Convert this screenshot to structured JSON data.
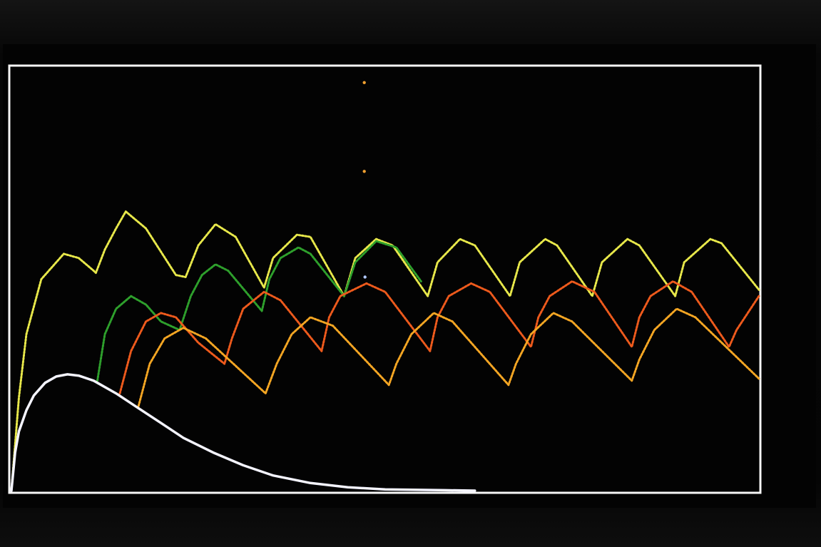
{
  "chart_data": {
    "type": "line",
    "title": "",
    "xlabel": "",
    "ylabel": "",
    "xlim": [
      0,
      100
    ],
    "ylim": [
      0,
      100
    ],
    "grid": false,
    "legend": "none",
    "series": [
      {
        "color": "#e8e84a",
        "style": "dotted",
        "points": [
          {
            "x": 0,
            "y": 0
          },
          {
            "x": 1,
            "y": 22
          },
          {
            "x": 2,
            "y": 37
          },
          {
            "x": 4,
            "y": 50
          },
          {
            "x": 7,
            "y": 56
          },
          {
            "x": 9,
            "y": 55
          },
          {
            "x": 11,
            "y": 52
          },
          {
            "x": 11.3,
            "y": 51.5
          },
          {
            "x": 12.5,
            "y": 57
          },
          {
            "x": 14,
            "y": 62
          },
          {
            "x": 15.3,
            "y": 66
          },
          {
            "x": 18,
            "y": 62
          },
          {
            "x": 22,
            "y": 51
          },
          {
            "x": 23.3,
            "y": 50.5
          },
          {
            "x": 25,
            "y": 58
          },
          {
            "x": 27.3,
            "y": 63
          },
          {
            "x": 30,
            "y": 60
          },
          {
            "x": 33.8,
            "y": 48
          },
          {
            "x": 35,
            "y": 55
          },
          {
            "x": 38.2,
            "y": 60.5
          },
          {
            "x": 40,
            "y": 60
          },
          {
            "x": 44.5,
            "y": 46
          },
          {
            "x": 46,
            "y": 55
          },
          {
            "x": 48.8,
            "y": 59.5
          },
          {
            "x": 51,
            "y": 58
          },
          {
            "x": 55.7,
            "y": 46
          },
          {
            "x": 57,
            "y": 54
          },
          {
            "x": 60,
            "y": 59.5
          },
          {
            "x": 62,
            "y": 58
          },
          {
            "x": 66.7,
            "y": 46
          },
          {
            "x": 68,
            "y": 54
          },
          {
            "x": 71.4,
            "y": 59.5
          },
          {
            "x": 73,
            "y": 58
          },
          {
            "x": 77.7,
            "y": 46
          },
          {
            "x": 79,
            "y": 54
          },
          {
            "x": 82.4,
            "y": 59.5
          },
          {
            "x": 84,
            "y": 58
          },
          {
            "x": 88.8,
            "y": 46
          },
          {
            "x": 90,
            "y": 54
          },
          {
            "x": 93.5,
            "y": 59.5
          },
          {
            "x": 95,
            "y": 58.5
          },
          {
            "x": 100,
            "y": 47.5
          }
        ]
      },
      {
        "color": "#2ea02c",
        "style": "dotted",
        "points": [
          {
            "x": 11.5,
            "y": 26
          },
          {
            "x": 12.5,
            "y": 37
          },
          {
            "x": 14,
            "y": 43
          },
          {
            "x": 16,
            "y": 46
          },
          {
            "x": 18,
            "y": 44
          },
          {
            "x": 20,
            "y": 40
          },
          {
            "x": 22.5,
            "y": 38
          },
          {
            "x": 24,
            "y": 46
          },
          {
            "x": 25.5,
            "y": 51
          },
          {
            "x": 27.3,
            "y": 53.5
          },
          {
            "x": 29,
            "y": 52
          },
          {
            "x": 33.5,
            "y": 42.5
          },
          {
            "x": 34.5,
            "y": 50
          },
          {
            "x": 36,
            "y": 55
          },
          {
            "x": 38.4,
            "y": 57.5
          },
          {
            "x": 40,
            "y": 56
          },
          {
            "x": 44.5,
            "y": 46
          },
          {
            "x": 46,
            "y": 54
          },
          {
            "x": 48.8,
            "y": 59
          },
          {
            "x": 51.5,
            "y": 57.5
          },
          {
            "x": 54.8,
            "y": 49.5
          }
        ]
      },
      {
        "color": "#ee5a1c",
        "style": "dotted",
        "points": [
          {
            "x": 14.5,
            "y": 23
          },
          {
            "x": 16,
            "y": 33
          },
          {
            "x": 18,
            "y": 40
          },
          {
            "x": 20,
            "y": 42
          },
          {
            "x": 22,
            "y": 41
          },
          {
            "x": 25,
            "y": 35
          },
          {
            "x": 28.5,
            "y": 30
          },
          {
            "x": 29.5,
            "y": 36
          },
          {
            "x": 31,
            "y": 43
          },
          {
            "x": 33.8,
            "y": 47
          },
          {
            "x": 36,
            "y": 45
          },
          {
            "x": 41.5,
            "y": 33
          },
          {
            "x": 42.5,
            "y": 41
          },
          {
            "x": 44,
            "y": 46
          },
          {
            "x": 47.5,
            "y": 49
          },
          {
            "x": 50,
            "y": 47
          },
          {
            "x": 56,
            "y": 33
          },
          {
            "x": 57,
            "y": 41
          },
          {
            "x": 58.5,
            "y": 46
          },
          {
            "x": 61.5,
            "y": 49
          },
          {
            "x": 64,
            "y": 47
          },
          {
            "x": 69.5,
            "y": 34
          },
          {
            "x": 70.5,
            "y": 41
          },
          {
            "x": 72,
            "y": 46
          },
          {
            "x": 75,
            "y": 49.5
          },
          {
            "x": 78,
            "y": 47
          },
          {
            "x": 83,
            "y": 34
          },
          {
            "x": 84,
            "y": 41
          },
          {
            "x": 85.5,
            "y": 46
          },
          {
            "x": 88.5,
            "y": 49.5
          },
          {
            "x": 91,
            "y": 47
          },
          {
            "x": 96,
            "y": 34
          },
          {
            "x": 97,
            "y": 38
          },
          {
            "x": 100,
            "y": 46
          }
        ]
      },
      {
        "color": "#f5a623",
        "style": "dotted",
        "points": [
          {
            "x": 17,
            "y": 20
          },
          {
            "x": 18.5,
            "y": 30
          },
          {
            "x": 20.5,
            "y": 36
          },
          {
            "x": 23,
            "y": 38.5
          },
          {
            "x": 26,
            "y": 36
          },
          {
            "x": 34,
            "y": 23
          },
          {
            "x": 35.5,
            "y": 30
          },
          {
            "x": 37.5,
            "y": 37
          },
          {
            "x": 40,
            "y": 41
          },
          {
            "x": 43,
            "y": 39
          },
          {
            "x": 50.5,
            "y": 25
          },
          {
            "x": 51.5,
            "y": 30
          },
          {
            "x": 53.5,
            "y": 37
          },
          {
            "x": 56.5,
            "y": 42
          },
          {
            "x": 59,
            "y": 40
          },
          {
            "x": 66.5,
            "y": 25
          },
          {
            "x": 67.5,
            "y": 30
          },
          {
            "x": 69.5,
            "y": 37
          },
          {
            "x": 72.5,
            "y": 42
          },
          {
            "x": 75,
            "y": 40
          },
          {
            "x": 83,
            "y": 26
          },
          {
            "x": 84,
            "y": 31
          },
          {
            "x": 86,
            "y": 38
          },
          {
            "x": 89,
            "y": 43
          },
          {
            "x": 91.5,
            "y": 41
          },
          {
            "x": 100,
            "y": 26.5
          }
        ]
      },
      {
        "color": "#f4f4ff",
        "style": "solid",
        "points": [
          {
            "x": 0,
            "y": 0
          },
          {
            "x": 0.5,
            "y": 9
          },
          {
            "x": 1,
            "y": 14
          },
          {
            "x": 2,
            "y": 19
          },
          {
            "x": 3,
            "y": 22.5
          },
          {
            "x": 4.5,
            "y": 25.5
          },
          {
            "x": 6,
            "y": 27
          },
          {
            "x": 7.5,
            "y": 27.5
          },
          {
            "x": 9,
            "y": 27.2
          },
          {
            "x": 11,
            "y": 26
          },
          {
            "x": 14,
            "y": 23
          },
          {
            "x": 17,
            "y": 19.5
          },
          {
            "x": 20,
            "y": 16
          },
          {
            "x": 23,
            "y": 12.5
          },
          {
            "x": 27,
            "y": 9
          },
          {
            "x": 31,
            "y": 6
          },
          {
            "x": 35,
            "y": 3.6
          },
          {
            "x": 40,
            "y": 1.8
          },
          {
            "x": 45,
            "y": 0.8
          },
          {
            "x": 50,
            "y": 0.3
          },
          {
            "x": 58,
            "y": 0.1
          },
          {
            "x": 62,
            "y": 0
          }
        ]
      }
    ],
    "markers": [
      {
        "x": 47.2,
        "y": 96.5,
        "color": "#f0a030"
      },
      {
        "x": 47.2,
        "y": 75.5,
        "color": "#f0a030"
      },
      {
        "x": 47.3,
        "y": 50.5,
        "color": "#b0c8ff"
      }
    ]
  }
}
